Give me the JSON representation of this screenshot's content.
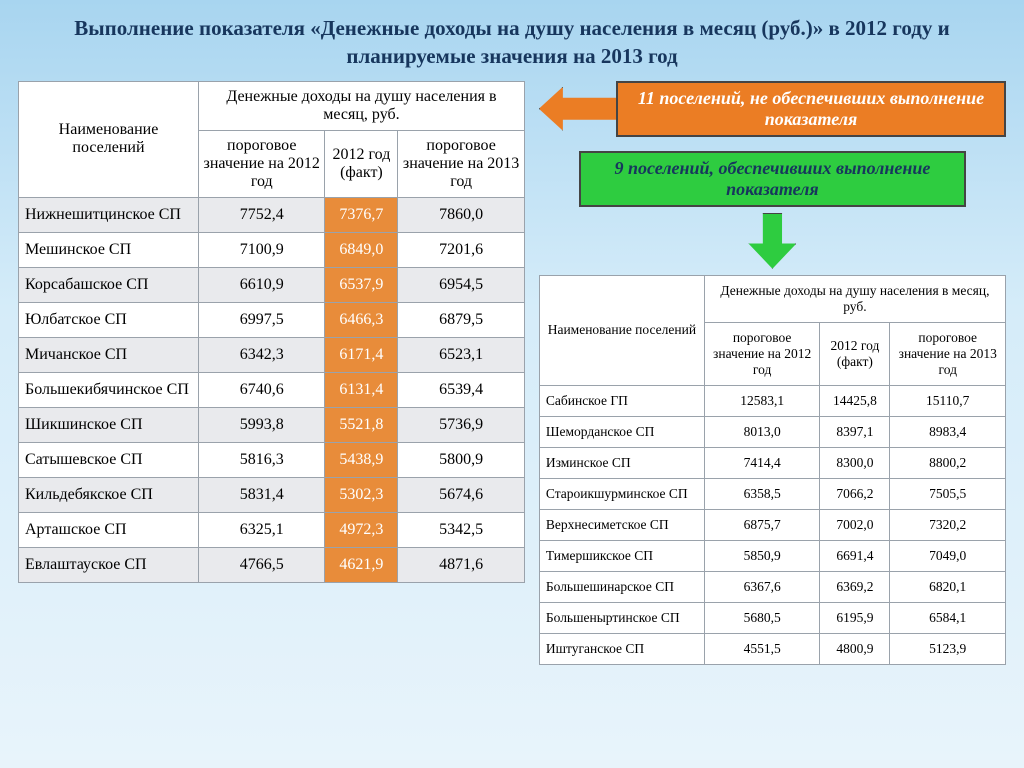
{
  "title": "Выполнение показателя «Денежные доходы на душу населения в месяц (руб.)» в 2012 году и планируемые значения на 2013 год",
  "colors": {
    "highlight": "#e88c3a",
    "orange": "#eb7d24",
    "green": "#2ecc40",
    "header_text": "#17365d"
  },
  "left_table": {
    "name_header": "Наименование поселений",
    "group_header": "Денежные доходы на душу населения в месяц, руб.",
    "sub1": "пороговое значение на 2012 год",
    "sub2": "2012 год (факт)",
    "sub3": "пороговое значение на 2013 год",
    "rows": [
      {
        "name": "Нижнешитцинское СП",
        "v1": "7752,4",
        "v2": "7376,7",
        "v3": "7860,0"
      },
      {
        "name": "Мешинское СП",
        "v1": "7100,9",
        "v2": "6849,0",
        "v3": "7201,6"
      },
      {
        "name": "Корсабашское СП",
        "v1": "6610,9",
        "v2": "6537,9",
        "v3": "6954,5"
      },
      {
        "name": "Юлбатское СП",
        "v1": "6997,5",
        "v2": "6466,3",
        "v3": "6879,5"
      },
      {
        "name": "Мичанское СП",
        "v1": "6342,3",
        "v2": "6171,4",
        "v3": "6523,1"
      },
      {
        "name": "Большекибячинское СП",
        "v1": "6740,6",
        "v2": "6131,4",
        "v3": "6539,4"
      },
      {
        "name": "Шикшинское СП",
        "v1": "5993,8",
        "v2": "5521,8",
        "v3": "5736,9"
      },
      {
        "name": "Сатышевское СП",
        "v1": "5816,3",
        "v2": "5438,9",
        "v3": "5800,9"
      },
      {
        "name": "Кильдебякское СП",
        "v1": "5831,4",
        "v2": "5302,3",
        "v3": "5674,6"
      },
      {
        "name": "Арташское СП",
        "v1": "6325,1",
        "v2": "4972,3",
        "v3": "5342,5"
      },
      {
        "name": "Евлаштауское СП",
        "v1": "4766,5",
        "v2": "4621,9",
        "v3": "4871,6"
      }
    ]
  },
  "callout_orange": "11 поселений, не обеспечивших выполнение показателя",
  "callout_green": "9 поселений, обеспечивших выполнение показателя",
  "right_table": {
    "name_header": "Наименование поселений",
    "group_header": "Денежные доходы на душу населения в месяц, руб.",
    "sub1": "пороговое значение на 2012 год",
    "sub2": "2012 год (факт)",
    "sub3": "пороговое значение на 2013 год",
    "rows": [
      {
        "name": "Сабинское ГП",
        "v1": "12583,1",
        "v2": "14425,8",
        "v3": "15110,7"
      },
      {
        "name": "Шеморданское СП",
        "v1": "8013,0",
        "v2": "8397,1",
        "v3": "8983,4"
      },
      {
        "name": "Изминское СП",
        "v1": "7414,4",
        "v2": "8300,0",
        "v3": "8800,2"
      },
      {
        "name": "Староикшурминское СП",
        "v1": "6358,5",
        "v2": "7066,2",
        "v3": "7505,5"
      },
      {
        "name": "Верхнесиметское СП",
        "v1": "6875,7",
        "v2": "7002,0",
        "v3": "7320,2"
      },
      {
        "name": "Тимершикское СП",
        "v1": "5850,9",
        "v2": "6691,4",
        "v3": "7049,0"
      },
      {
        "name": "Большешинарское СП",
        "v1": "6367,6",
        "v2": "6369,2",
        "v3": "6820,1"
      },
      {
        "name": "Большеныртинское СП",
        "v1": "5680,5",
        "v2": "6195,9",
        "v3": "6584,1"
      },
      {
        "name": "Иштуганское СП",
        "v1": "4551,5",
        "v2": "4800,9",
        "v3": "5123,9"
      }
    ]
  }
}
